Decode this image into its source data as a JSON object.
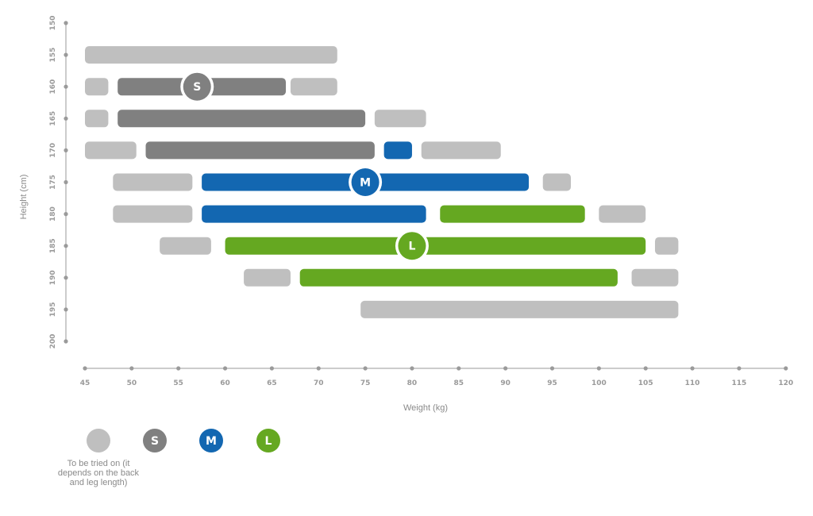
{
  "chart_data": {
    "type": "bar",
    "subtype": "size-chart-ranges",
    "xlabel": "Weight (kg)",
    "ylabel": "Height (cm)",
    "xlim": [
      45,
      120
    ],
    "ylim": [
      150,
      200
    ],
    "y_inverted": true,
    "grid": false,
    "x_ticks": [
      "45",
      "50",
      "55",
      "60",
      "65",
      "70",
      "75",
      "80",
      "85",
      "90",
      "95",
      "100",
      "105",
      "110",
      "115",
      "120"
    ],
    "y_ticks": [
      "150",
      "155",
      "160",
      "165",
      "170",
      "175",
      "180",
      "185",
      "190",
      "195",
      "200"
    ],
    "colors": {
      "try": "#bfbfbf",
      "S": "#808080",
      "M": "#1367b1",
      "L": "#65a821",
      "axis": "#9a9a9a",
      "badge_border": "#ffffff"
    },
    "series": [
      {
        "id": "try",
        "name": "To be tried on (it depends on the back and leg length)",
        "segments": [
          {
            "height": 155,
            "from": 45,
            "to": 72
          },
          {
            "height": 160,
            "from": 45,
            "to": 47.5
          },
          {
            "height": 160,
            "from": 67,
            "to": 72
          },
          {
            "height": 165,
            "from": 45,
            "to": 47.5
          },
          {
            "height": 165,
            "from": 76,
            "to": 81.5
          },
          {
            "height": 170,
            "from": 45,
            "to": 50.5
          },
          {
            "height": 170,
            "from": 81,
            "to": 89.5
          },
          {
            "height": 175,
            "from": 48,
            "to": 56.5
          },
          {
            "height": 175,
            "from": 94,
            "to": 97
          },
          {
            "height": 180,
            "from": 48,
            "to": 56.5
          },
          {
            "height": 180,
            "from": 100,
            "to": 105
          },
          {
            "height": 185,
            "from": 53,
            "to": 58.5
          },
          {
            "height": 185,
            "from": 106,
            "to": 108.5
          },
          {
            "height": 190,
            "from": 62,
            "to": 67
          },
          {
            "height": 190,
            "from": 103.5,
            "to": 108.5
          },
          {
            "height": 195,
            "from": 74.5,
            "to": 108.5
          }
        ]
      },
      {
        "id": "S",
        "name": "S",
        "segments": [
          {
            "height": 160,
            "from": 48.5,
            "to": 66.5
          },
          {
            "height": 165,
            "from": 48.5,
            "to": 75
          },
          {
            "height": 170,
            "from": 51.5,
            "to": 76
          }
        ]
      },
      {
        "id": "M",
        "name": "M",
        "segments": [
          {
            "height": 170,
            "from": 77,
            "to": 80
          },
          {
            "height": 175,
            "from": 57.5,
            "to": 92.5
          },
          {
            "height": 180,
            "from": 57.5,
            "to": 81.5
          }
        ]
      },
      {
        "id": "L",
        "name": "L",
        "segments": [
          {
            "height": 180,
            "from": 83,
            "to": 98.5
          },
          {
            "height": 185,
            "from": 60,
            "to": 105
          },
          {
            "height": 190,
            "from": 68,
            "to": 102
          }
        ]
      }
    ],
    "badges": [
      {
        "label": "S",
        "series": "S",
        "weight": 57,
        "height": 160
      },
      {
        "label": "M",
        "series": "M",
        "weight": 75,
        "height": 175
      },
      {
        "label": "L",
        "series": "L",
        "weight": 80,
        "height": 185
      }
    ],
    "legend": {
      "position": "bottom-left",
      "items": [
        {
          "series": "try",
          "label": "",
          "text": "To be tried on (it depends on the back and leg length)"
        },
        {
          "series": "S",
          "label": "S",
          "text": ""
        },
        {
          "series": "M",
          "label": "M",
          "text": ""
        },
        {
          "series": "L",
          "label": "L",
          "text": ""
        }
      ]
    }
  }
}
